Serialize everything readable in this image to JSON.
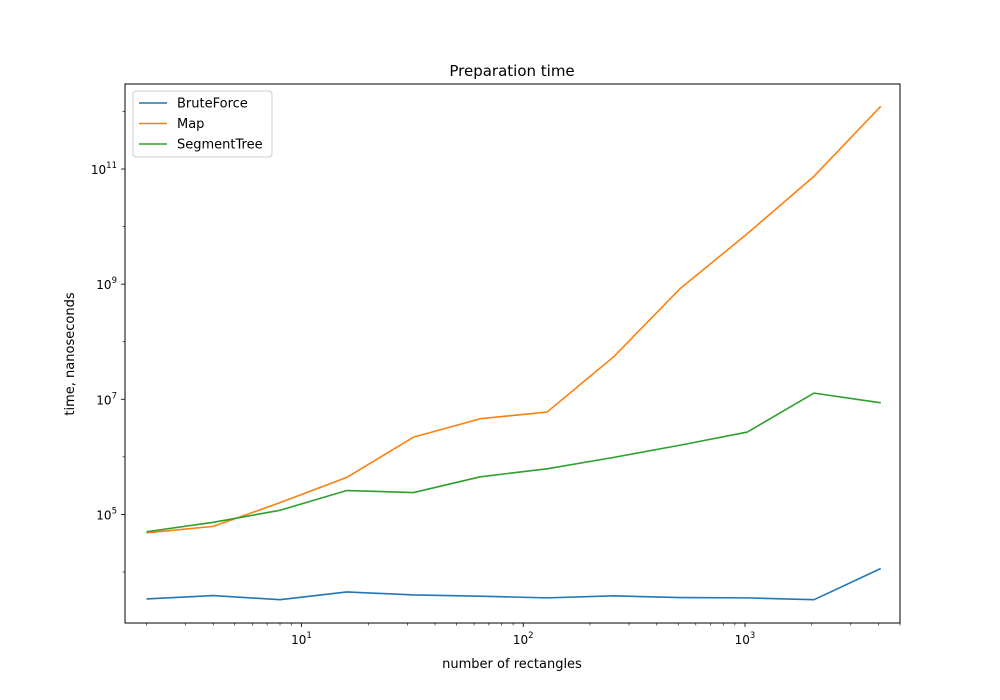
{
  "chart_data": {
    "type": "line",
    "title": "Preparation time",
    "xlabel": "number of rectangles",
    "ylabel": "time, nanoseconds",
    "xscale": "log",
    "yscale": "log",
    "xlim": [
      1.6,
      5000
    ],
    "ylim": [
      1300,
      3000000000000
    ],
    "x": [
      2,
      4,
      8,
      16,
      32,
      64,
      128,
      256,
      512,
      1024,
      2048,
      4096
    ],
    "series": [
      {
        "name": "BruteForce",
        "color": "#1f77b4",
        "values": [
          3400,
          3900,
          3300,
          4500,
          4000,
          3800,
          3550,
          3850,
          3600,
          3550,
          3300,
          11500
        ]
      },
      {
        "name": "Map",
        "color": "#ff7f0e",
        "values": [
          48000,
          62000,
          160000,
          440000,
          2200000,
          4600000,
          6000000,
          55000000,
          850000000,
          7500000000,
          75000000000,
          1230000000000
        ]
      },
      {
        "name": "SegmentTree",
        "color": "#2ca02c",
        "values": [
          50000,
          73000,
          118000,
          260000,
          240000,
          450000,
          620000,
          980000,
          1600000,
          2700000,
          12800000,
          8700000
        ]
      }
    ],
    "x_ticks": [
      {
        "value": 10,
        "base": "10",
        "exp": "1"
      },
      {
        "value": 100,
        "base": "10",
        "exp": "2"
      },
      {
        "value": 1000,
        "base": "10",
        "exp": "3"
      }
    ],
    "y_ticks": [
      {
        "value": 100000,
        "base": "10",
        "exp": "5"
      },
      {
        "value": 10000000,
        "base": "10",
        "exp": "7"
      },
      {
        "value": 1000000000,
        "base": "10",
        "exp": "9"
      },
      {
        "value": 100000000000,
        "base": "10",
        "exp": "11"
      }
    ],
    "legend_position": "upper-left",
    "grid": false
  }
}
